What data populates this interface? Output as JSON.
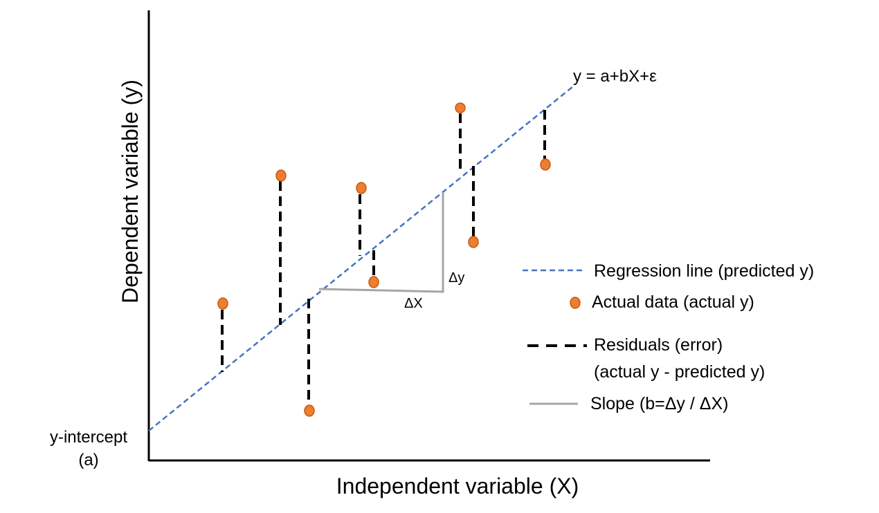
{
  "axes": {
    "x_label": "Independent variable (X)",
    "y_label": "Dependent variable (y)"
  },
  "equation": "y = a+bX+ε",
  "y_intercept": {
    "line1": "y-intercept",
    "line2": "(a)"
  },
  "slope_labels": {
    "delta_x": "ΔX",
    "delta_y": "Δy"
  },
  "legend": {
    "regression": "Regression line (predicted y)",
    "actual": "Actual data (actual y)",
    "residuals_line1": "Residuals (error)",
    "residuals_line2": "(actual y - predicted y)",
    "slope": "Slope (b=Δy / ΔX)"
  },
  "colors": {
    "regression_line": "#4472c4",
    "data_point_fill": "#ed7d31",
    "data_point_stroke": "#c55a11",
    "residual": "#000000",
    "slope": "#a5a5a5",
    "axis": "#000000"
  }
}
